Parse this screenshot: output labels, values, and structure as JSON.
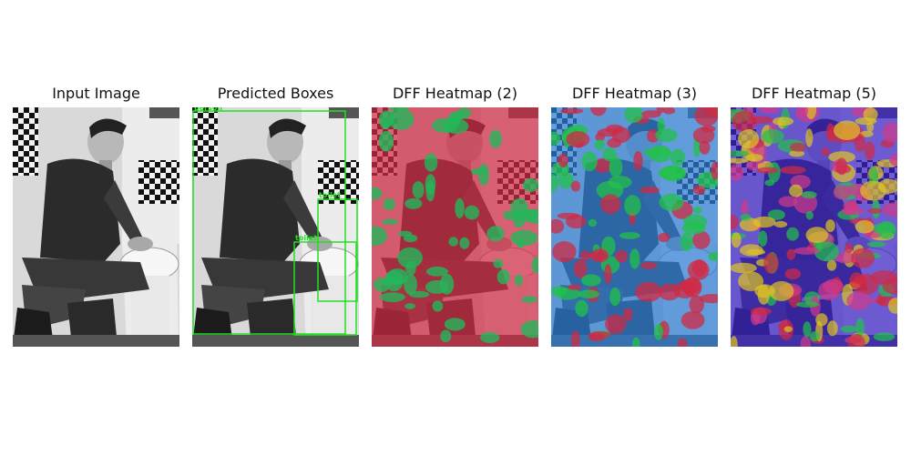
{
  "figure": {
    "panels": [
      {
        "title": "Input Image"
      },
      {
        "title": "Predicted Boxes"
      },
      {
        "title": "DFF Heatmap (2)"
      },
      {
        "title": "DFF Heatmap (3)"
      },
      {
        "title": "DFF Heatmap (5)"
      }
    ],
    "boxes": [
      {
        "label": "person",
        "color": "#22e022"
      },
      {
        "label": "toilet",
        "color": "#22e022"
      },
      {
        "label": "toilet",
        "color": "#22e022"
      }
    ],
    "heatmap_colors": {
      "two": [
        "#d02a44",
        "#22b85a"
      ],
      "three": [
        "#2d7dd2",
        "#d02a44",
        "#22c24a"
      ],
      "five": [
        "#3b22c8",
        "#d02a44",
        "#22c24a",
        "#e0c522",
        "#d03a8a"
      ]
    }
  }
}
